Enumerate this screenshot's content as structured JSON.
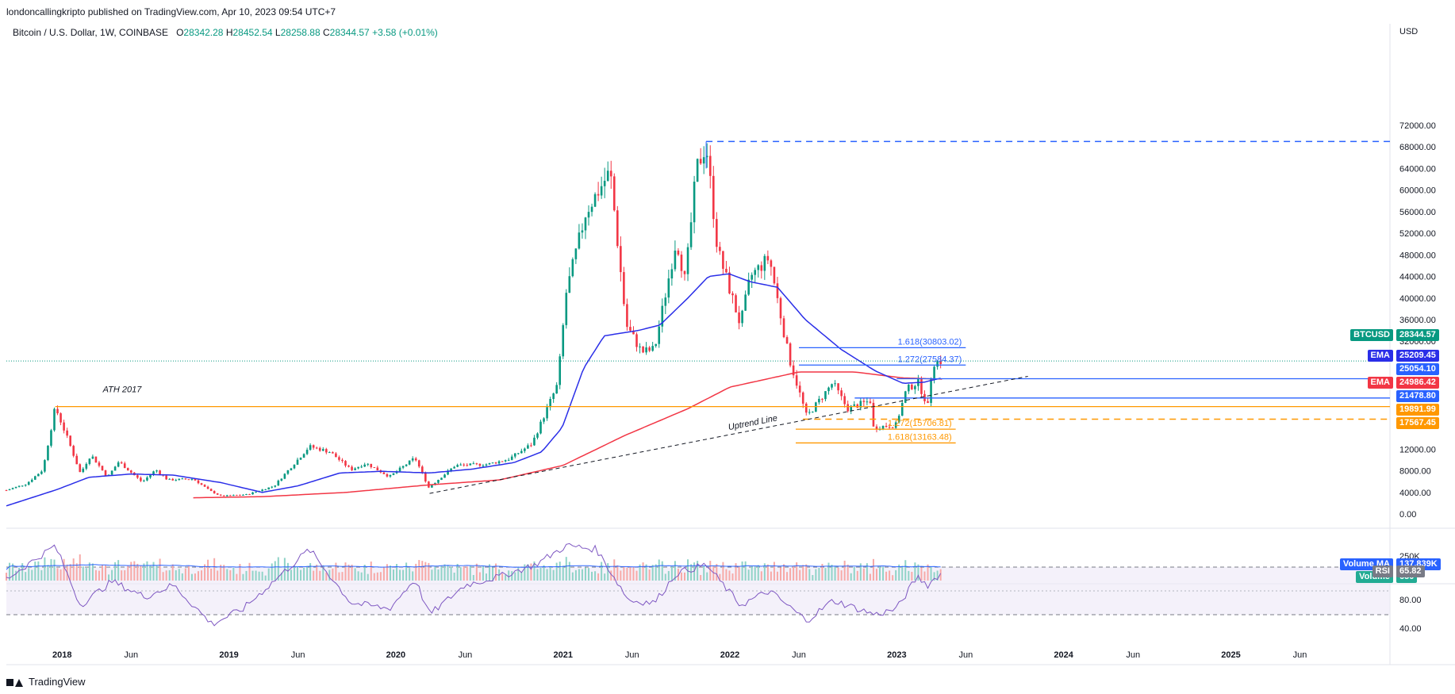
{
  "header": {
    "published_by": "londoncallingkripto published on TradingView.com, Apr 10, 2023 09:54 UTC+7",
    "symbol": "Bitcoin / U.S. Dollar, 1W, COINBASE",
    "open_label": "O",
    "open": "28342.28",
    "high_label": "H",
    "high": "28452.54",
    "low_label": "L",
    "low": "28258.88",
    "close_label": "C",
    "close": "28344.57",
    "change": "+3.58 (+0.01%)",
    "currency": "USD"
  },
  "footer": {
    "brand": "TradingView"
  },
  "colors": {
    "up": "#089981",
    "down": "#f23645",
    "ema_fast": "#2a2ee8",
    "ema_slow": "#f23645",
    "fib_blue": "#2962ff",
    "orange": "#ff9800",
    "rsi": "#7e57c2",
    "grid": "#f0f3fa"
  },
  "chart_data": [
    {
      "type": "candlestick",
      "y_axis": {
        "min": 0,
        "max": 72000,
        "ticks": [
          "72000.00",
          "68000.00",
          "64000.00",
          "60000.00",
          "56000.00",
          "52000.00",
          "48000.00",
          "44000.00",
          "40000.00",
          "36000.00",
          "32000.00",
          "12000.00",
          "8000.00",
          "4000.00",
          "0.00"
        ]
      },
      "x_axis": {
        "start": "2017-09-01",
        "end": "2025-12-15",
        "ticks": [
          "2018",
          "Jun",
          "2019",
          "Jun",
          "2020",
          "Jun",
          "2021",
          "Jun",
          "2022",
          "Jun",
          "2023",
          "Jun",
          "2024",
          "Jun",
          "2025",
          "Jun"
        ]
      },
      "ohlc_anchors": [
        [
          "2017-09-01",
          4400
        ],
        [
          "2017-10-15",
          5600
        ],
        [
          "2017-11-20",
          8200
        ],
        [
          "2017-12-17",
          19800
        ],
        [
          "2018-01-15",
          13500
        ],
        [
          "2018-02-10",
          7500
        ],
        [
          "2018-03-05",
          11000
        ],
        [
          "2018-04-10",
          6800
        ],
        [
          "2018-05-05",
          9700
        ],
        [
          "2018-06-25",
          5900
        ],
        [
          "2018-07-25",
          8200
        ],
        [
          "2018-08-20",
          6300
        ],
        [
          "2018-10-15",
          6500
        ],
        [
          "2018-11-20",
          4300
        ],
        [
          "2018-12-15",
          3300
        ],
        [
          "2019-02-10",
          3600
        ],
        [
          "2019-04-10",
          5200
        ],
        [
          "2019-06-26",
          12500
        ],
        [
          "2019-08-10",
          11500
        ],
        [
          "2019-09-25",
          8200
        ],
        [
          "2019-10-28",
          9400
        ],
        [
          "2019-12-18",
          6900
        ],
        [
          "2020-02-12",
          10400
        ],
        [
          "2020-03-13",
          4900
        ],
        [
          "2020-05-10",
          9000
        ],
        [
          "2020-07-20",
          9200
        ],
        [
          "2020-09-05",
          10200
        ],
        [
          "2020-10-25",
          13000
        ],
        [
          "2020-12-20",
          24000
        ],
        [
          "2021-01-08",
          41000
        ],
        [
          "2021-02-20",
          56000
        ],
        [
          "2021-04-14",
          63500
        ],
        [
          "2021-05-19",
          35000
        ],
        [
          "2021-06-22",
          30000
        ],
        [
          "2021-07-20",
          30500
        ],
        [
          "2021-09-06",
          51000
        ],
        [
          "2021-09-25",
          43000
        ],
        [
          "2021-10-20",
          64000
        ],
        [
          "2021-11-10",
          68500
        ],
        [
          "2021-12-05",
          49000
        ],
        [
          "2022-01-24",
          35000
        ],
        [
          "2022-02-15",
          44000
        ],
        [
          "2022-03-28",
          47500
        ],
        [
          "2022-05-10",
          29000
        ],
        [
          "2022-06-18",
          18000
        ],
        [
          "2022-08-14",
          24300
        ],
        [
          "2022-09-15",
          19500
        ],
        [
          "2022-11-05",
          21000
        ],
        [
          "2022-11-09",
          16000
        ],
        [
          "2022-12-30",
          16500
        ],
        [
          "2023-01-22",
          23000
        ],
        [
          "2023-02-16",
          24500
        ],
        [
          "2023-03-10",
          20000
        ],
        [
          "2023-03-20",
          28000
        ],
        [
          "2023-04-10",
          28344
        ]
      ],
      "ema_fast_anchors": [
        [
          "2017-09-01",
          1500
        ],
        [
          "2017-12-20",
          4500
        ],
        [
          "2018-03-01",
          6800
        ],
        [
          "2018-06-01",
          7400
        ],
        [
          "2018-09-01",
          7200
        ],
        [
          "2018-12-15",
          5800
        ],
        [
          "2019-03-15",
          4000
        ],
        [
          "2019-06-01",
          5200
        ],
        [
          "2019-09-01",
          7600
        ],
        [
          "2019-12-01",
          7900
        ],
        [
          "2020-03-15",
          7600
        ],
        [
          "2020-06-15",
          8300
        ],
        [
          "2020-09-15",
          9500
        ],
        [
          "2020-11-15",
          11500
        ],
        [
          "2020-12-30",
          16000
        ],
        [
          "2021-02-15",
          27000
        ],
        [
          "2021-04-01",
          33000
        ],
        [
          "2021-06-15",
          34000
        ],
        [
          "2021-08-01",
          35000
        ],
        [
          "2021-10-01",
          40000
        ],
        [
          "2021-11-15",
          44000
        ],
        [
          "2021-12-30",
          44500
        ],
        [
          "2022-02-15",
          43000
        ],
        [
          "2022-04-15",
          42000
        ],
        [
          "2022-06-15",
          36000
        ],
        [
          "2022-09-01",
          30500
        ],
        [
          "2022-11-15",
          26500
        ],
        [
          "2023-01-15",
          24200
        ],
        [
          "2023-03-01",
          24400
        ],
        [
          "2023-04-10",
          25209
        ]
      ],
      "ema_slow_anchors": [
        [
          "2018-10-15",
          3000
        ],
        [
          "2019-03-15",
          3200
        ],
        [
          "2019-09-15",
          4000
        ],
        [
          "2020-03-15",
          5400
        ],
        [
          "2020-08-15",
          6300
        ],
        [
          "2021-01-01",
          9000
        ],
        [
          "2021-05-15",
          14500
        ],
        [
          "2021-10-01",
          19500
        ],
        [
          "2022-01-01",
          23500
        ],
        [
          "2022-06-01",
          26300
        ],
        [
          "2022-10-01",
          26300
        ],
        [
          "2023-01-15",
          25200
        ],
        [
          "2023-04-10",
          24986
        ]
      ],
      "levels": [
        {
          "label": "69000.00",
          "value": 69000,
          "from": "2021-11-10",
          "style": "dashed",
          "color": "#2962ff"
        },
        {
          "label": "1.618(30803.02)",
          "value": 30803.02,
          "from": "2022-06-01",
          "to": "2023-06-01",
          "color": "#2962ff"
        },
        {
          "label": "1.272(27584.37)",
          "value": 27584.37,
          "from": "2022-06-01",
          "to": "2023-06-01",
          "color": "#2962ff"
        },
        {
          "label": "25054.10",
          "value": 25054.1,
          "from": "2023-01-01",
          "color": "#2962ff"
        },
        {
          "label": "21478.80",
          "value": 21478.8,
          "from": "2022-10-01",
          "color": "#2962ff"
        },
        {
          "label": "ATH 2017",
          "value": 19891.99,
          "from": "2017-12-17",
          "color": "#ff9800"
        },
        {
          "label": "17567.45",
          "value": 17567.45,
          "from": "2022-06-10",
          "style": "dashed",
          "color": "#ff9800"
        },
        {
          "label": "1.272(15706.81)",
          "value": 15706.81,
          "from": "2022-05-25",
          "to": "2023-05-10",
          "color": "#ff9800"
        },
        {
          "label": "1.618(13163.48)",
          "value": 13163.48,
          "from": "2022-05-25",
          "to": "2023-05-10",
          "color": "#ff9800"
        }
      ],
      "uptrend_line": {
        "label": "Uptrend Line",
        "from": [
          "2020-03-15",
          3800
        ],
        "to": [
          "2023-10-15",
          25500
        ]
      },
      "price_tags": [
        {
          "name": "BTCUSD",
          "value": "28344.57",
          "color": "#089981"
        },
        {
          "name": "EMA",
          "value": "25209.45",
          "color": "#2a2ee8"
        },
        {
          "value": "25054.10",
          "color": "#2962ff"
        },
        {
          "name": "EMA",
          "value": "24986.42",
          "color": "#f23645"
        },
        {
          "value": "21478.80",
          "color": "#2962ff"
        },
        {
          "value": "19891.99",
          "color": "#ff9800"
        },
        {
          "value": "17567.45",
          "color": "#ff9800"
        }
      ]
    },
    {
      "type": "bar",
      "name": "Volume",
      "axis_label": "250K",
      "tags": [
        {
          "name": "Volume MA",
          "value": "137.839K",
          "color": "#2962ff"
        },
        {
          "name": "Volume",
          "value": "650",
          "color": "#22ab94"
        }
      ]
    },
    {
      "type": "line",
      "name": "RSI",
      "ylim": [
        0,
        100
      ],
      "ticks": [
        "80.00",
        "40.00"
      ],
      "band": [
        30,
        70
      ],
      "current": "65.82",
      "anchors": [
        [
          "2017-09-01",
          60
        ],
        [
          "2017-12-17",
          88
        ],
        [
          "2018-02-10",
          38
        ],
        [
          "2018-04-20",
          58
        ],
        [
          "2018-07-01",
          45
        ],
        [
          "2018-09-01",
          55
        ],
        [
          "2018-11-25",
          22
        ],
        [
          "2019-02-01",
          35
        ],
        [
          "2019-06-26",
          85
        ],
        [
          "2019-09-25",
          40
        ],
        [
          "2019-12-18",
          35
        ],
        [
          "2020-02-12",
          60
        ],
        [
          "2020-03-15",
          30
        ],
        [
          "2020-06-01",
          55
        ],
        [
          "2020-08-15",
          62
        ],
        [
          "2020-11-01",
          72
        ],
        [
          "2021-01-08",
          88
        ],
        [
          "2021-03-15",
          85
        ],
        [
          "2021-05-25",
          42
        ],
        [
          "2021-07-20",
          40
        ],
        [
          "2021-09-06",
          65
        ],
        [
          "2021-11-10",
          72
        ],
        [
          "2022-01-24",
          38
        ],
        [
          "2022-03-28",
          50
        ],
        [
          "2022-06-18",
          25
        ],
        [
          "2022-08-15",
          42
        ],
        [
          "2022-11-15",
          30
        ],
        [
          "2023-01-01",
          35
        ],
        [
          "2023-02-15",
          62
        ],
        [
          "2023-03-10",
          55
        ],
        [
          "2023-04-10",
          65.82
        ]
      ]
    }
  ]
}
